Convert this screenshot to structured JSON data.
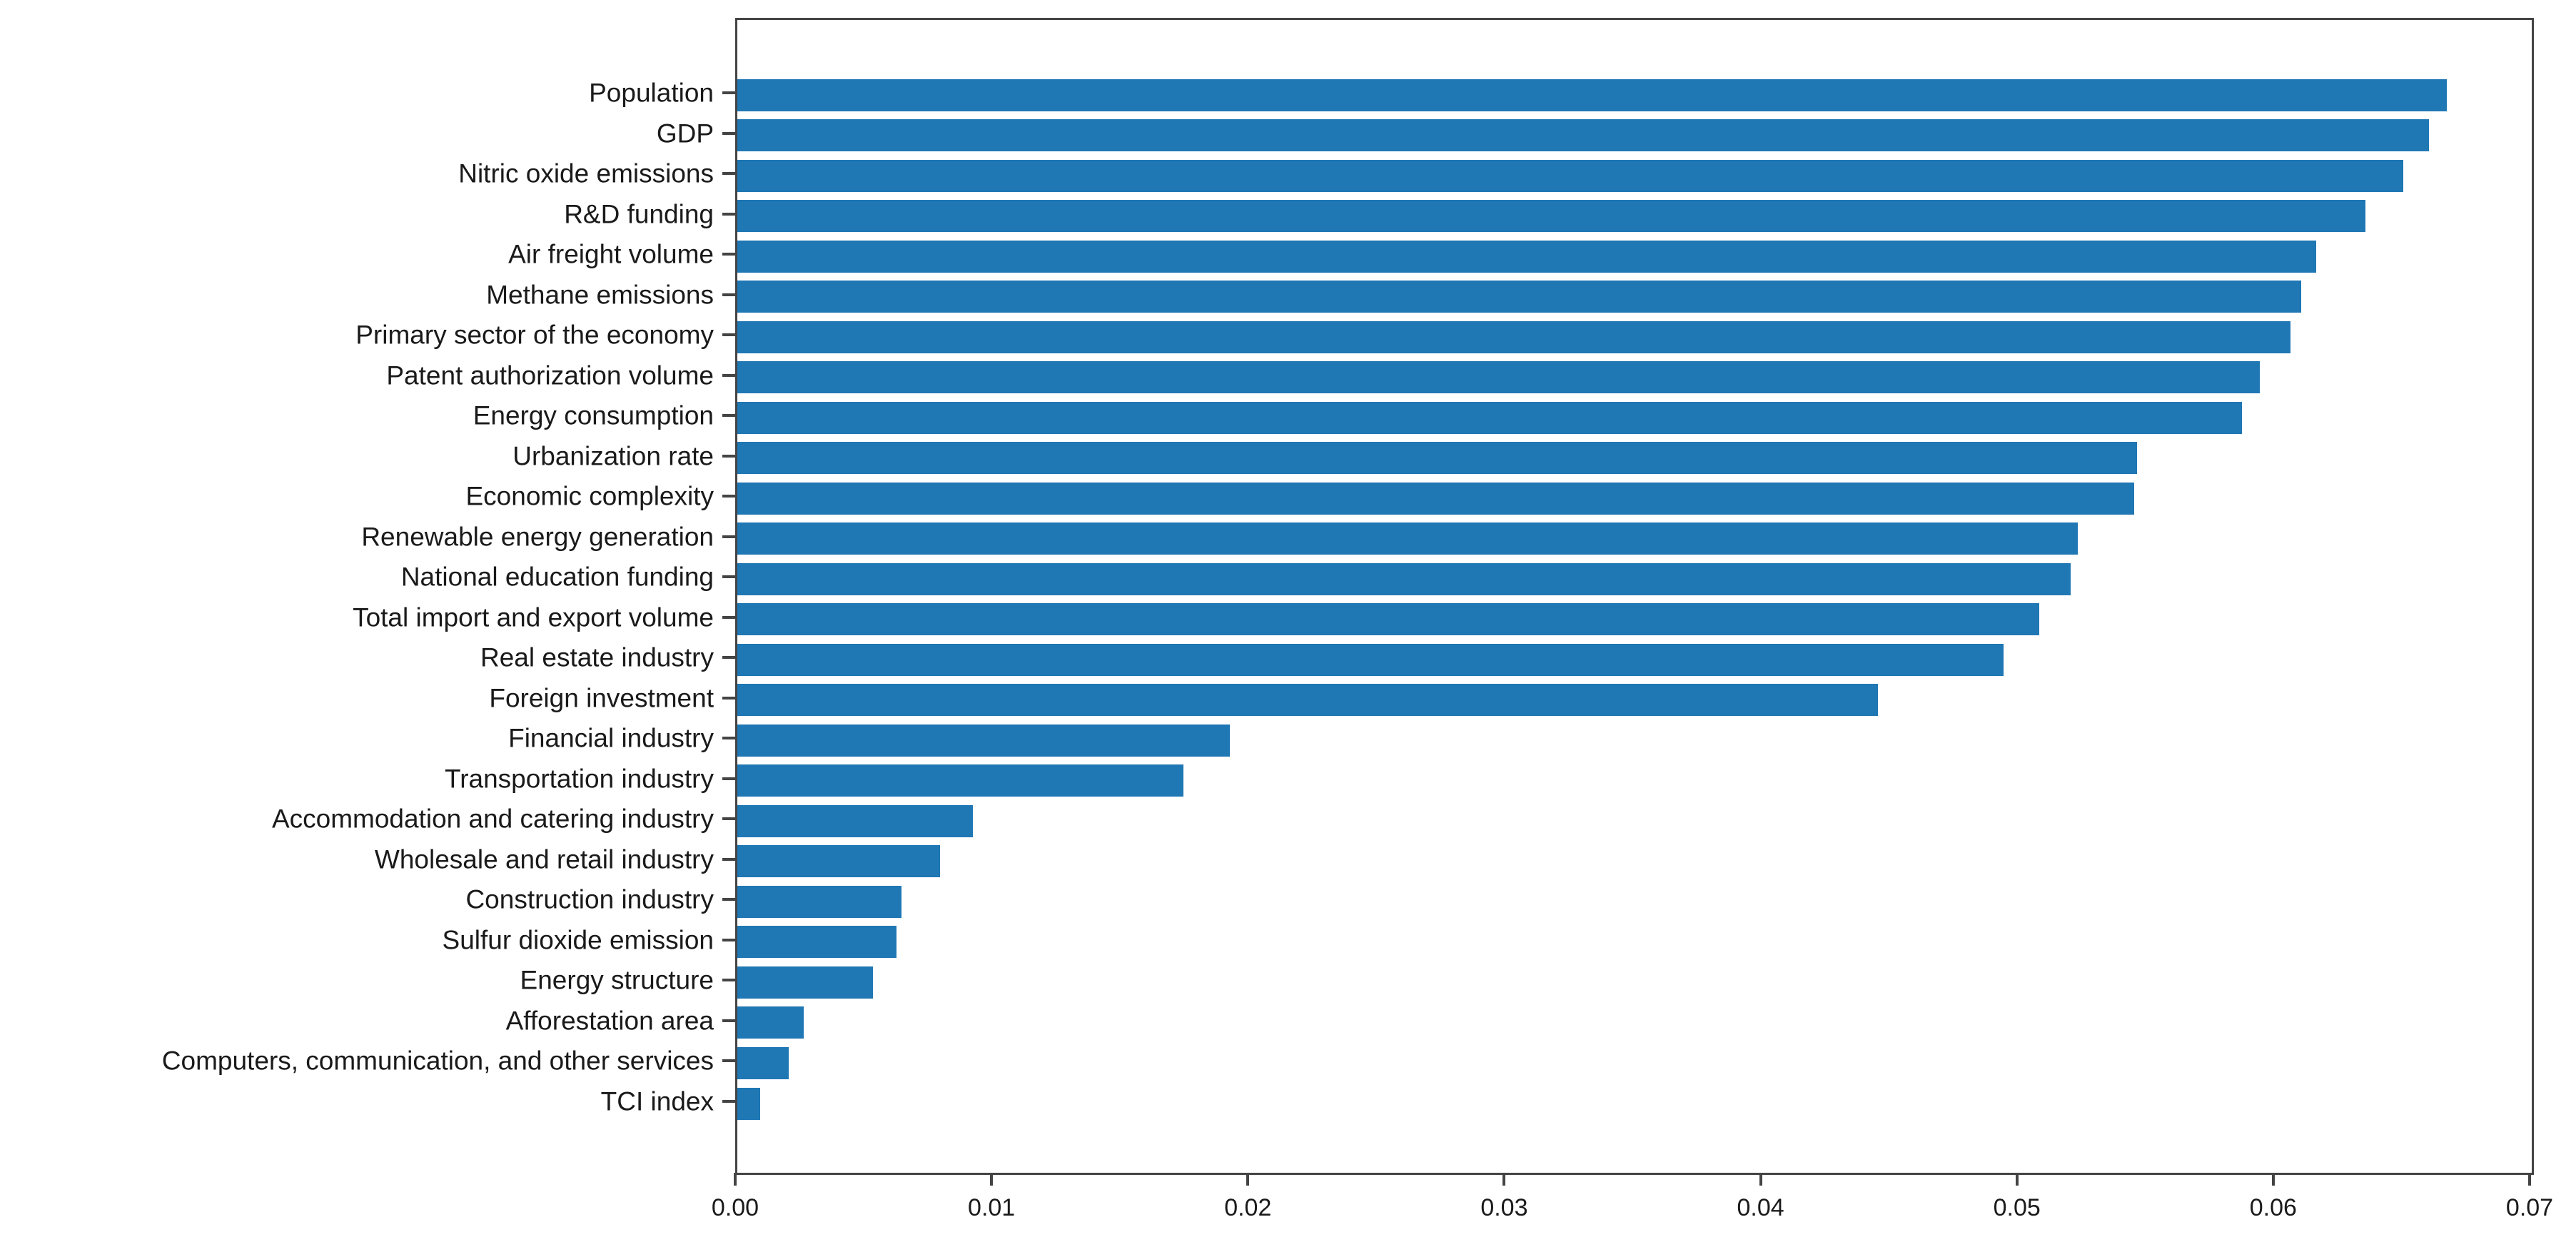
{
  "chart_data": {
    "type": "bar",
    "orientation": "horizontal",
    "categories": [
      "Population",
      "GDP",
      "Nitric oxide emissions",
      "R&D funding",
      "Air freight volume",
      "Methane emissions",
      "Primary sector of the economy",
      "Patent authorization volume",
      "Energy consumption",
      "Urbanization rate",
      "Economic complexity",
      "Renewable energy generation",
      "National education funding",
      "Total import and export volume",
      "Real estate industry",
      "Foreign investment",
      "Financial industry",
      "Transportation industry",
      "Accommodation and catering industry",
      "Wholesale and retail industry",
      "Construction industry",
      "Sulfur dioxide emission",
      "Energy structure",
      "Afforestation area",
      "Computers, communication, and other services",
      "TCI index"
    ],
    "values": [
      0.0667,
      0.066,
      0.065,
      0.0635,
      0.0616,
      0.061,
      0.0606,
      0.0594,
      0.0587,
      0.0546,
      0.0545,
      0.0523,
      0.052,
      0.0508,
      0.0494,
      0.0445,
      0.0192,
      0.0174,
      0.0092,
      0.0079,
      0.0064,
      0.0062,
      0.0053,
      0.0026,
      0.002,
      0.0009
    ],
    "xlim": [
      0.0,
      0.07
    ],
    "xtick_labels": [
      "0.00",
      "0.01",
      "0.02",
      "0.03",
      "0.04",
      "0.05",
      "0.06",
      "0.07"
    ],
    "bar_color": "#1f77b4",
    "axis_color": "#444444",
    "text_color": "#1a1a1a",
    "grid": false,
    "legend": false,
    "title": "",
    "xlabel": "",
    "ylabel": ""
  }
}
